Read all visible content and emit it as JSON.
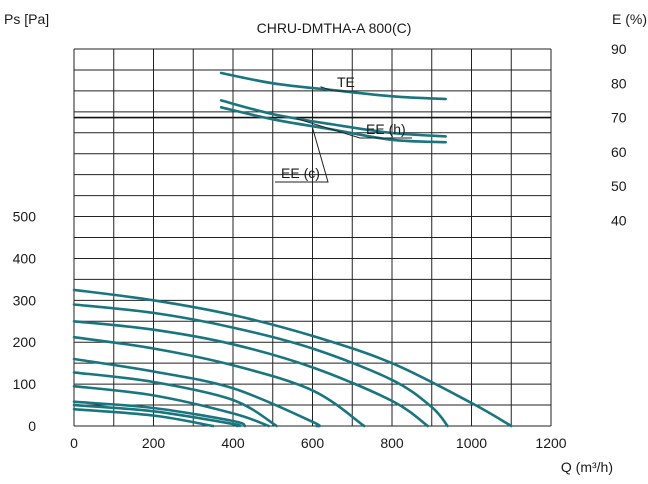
{
  "chart_data": {
    "type": "line",
    "title": "CHRU-DMTHA-A 800(C)",
    "xlabel": "Q (m³/h)",
    "ylabel_left": "Ps [Pa]",
    "ylabel_right": "E (%)",
    "x_ticks": [
      "0",
      "200",
      "400",
      "600",
      "800",
      "1000",
      "1200"
    ],
    "y_left_ticks": [
      "0",
      "100",
      "200",
      "300",
      "400",
      "500"
    ],
    "y_right_ticks": [
      "40",
      "50",
      "60",
      "70",
      "80",
      "90"
    ],
    "xlim": [
      0,
      1200
    ],
    "ylim_left": [
      0,
      900
    ],
    "ylim_right": [
      -20,
      90
    ],
    "grid": true,
    "reference_line": {
      "axis": "right",
      "value": 70
    },
    "fan_curves": [
      {
        "x": [
          0,
          200,
          400,
          600,
          800,
          1000,
          1100
        ],
        "y": [
          325,
          300,
          265,
          215,
          150,
          55,
          0
        ]
      },
      {
        "x": [
          0,
          200,
          400,
          600,
          800,
          900,
          940
        ],
        "y": [
          290,
          270,
          235,
          185,
          110,
          45,
          0
        ]
      },
      {
        "x": [
          0,
          200,
          400,
          600,
          800,
          890
        ],
        "y": [
          250,
          230,
          195,
          140,
          60,
          0
        ]
      },
      {
        "x": [
          0,
          200,
          400,
          600,
          730
        ],
        "y": [
          212,
          185,
          145,
          85,
          0
        ]
      },
      {
        "x": [
          0,
          200,
          400,
          600,
          610
        ],
        "y": [
          160,
          130,
          90,
          10,
          0
        ]
      },
      {
        "x": [
          0,
          200,
          400,
          510
        ],
        "y": [
          128,
          105,
          62,
          0
        ]
      },
      {
        "x": [
          0,
          200,
          400,
          490
        ],
        "y": [
          95,
          73,
          30,
          0
        ]
      },
      {
        "x": [
          0,
          200,
          400,
          430
        ],
        "y": [
          58,
          43,
          12,
          0
        ]
      },
      {
        "x": [
          0,
          200,
          400,
          410
        ],
        "y": [
          50,
          35,
          5,
          0
        ]
      },
      {
        "x": [
          0,
          200,
          350
        ],
        "y": [
          40,
          25,
          0
        ]
      }
    ],
    "efficiency_series": [
      {
        "name": "TE",
        "x": [
          370,
          500,
          650,
          800,
          935
        ],
        "y": [
          83,
          80,
          78,
          76.2,
          75.4
        ]
      },
      {
        "name": "EE (h)",
        "x": [
          370,
          500,
          650,
          800,
          935
        ],
        "y": [
          75,
          71,
          68,
          65.5,
          64.5
        ]
      },
      {
        "name": "EE (c)",
        "x": [
          370,
          500,
          650,
          800,
          935
        ],
        "y": [
          73,
          69.5,
          66.5,
          63.5,
          62.8
        ]
      }
    ]
  }
}
